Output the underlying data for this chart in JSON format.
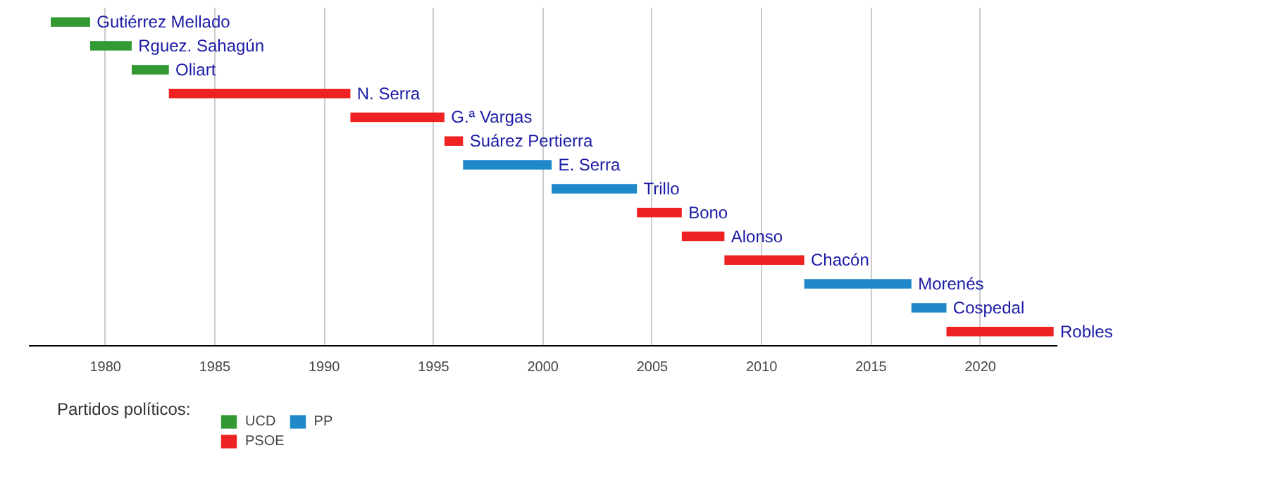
{
  "chart_data": {
    "type": "bar",
    "orientation": "horizontal",
    "tick_labels": "x",
    "grid": "x",
    "legend": "bottom",
    "legend_title": "Partidos políticos:",
    "categories": [
      "Gutiérrez Mellado",
      "Rguez. Sahagún",
      "Oliart",
      "N. Serra",
      "G.ª Vargas",
      "Suárez Pertierra",
      "E. Serra",
      "Trillo",
      "Bono",
      "Alonso",
      "Chacón",
      "Morenés",
      "Cospedal",
      "Robles"
    ],
    "series": [
      {
        "name": "UCD",
        "color": "#339933",
        "base": [
          1977.5,
          1979.3,
          1981.2,
          null,
          null,
          null,
          null,
          null,
          null,
          null,
          null,
          null,
          null,
          null
        ],
        "values": [
          1.8,
          1.9,
          1.7,
          null,
          null,
          null,
          null,
          null,
          null,
          null,
          null,
          null,
          null,
          null
        ]
      },
      {
        "name": "PSOE",
        "color": "#ee2222",
        "base": [
          null,
          null,
          null,
          1982.9,
          1991.2,
          1995.5,
          null,
          null,
          2004.3,
          2006.35,
          2008.3,
          null,
          null,
          2018.45
        ],
        "values": [
          null,
          null,
          null,
          8.3,
          4.3,
          0.85,
          null,
          null,
          2.05,
          1.95,
          3.65,
          null,
          null,
          4.9
        ]
      },
      {
        "name": "PP",
        "color": "#1e88c8",
        "base": [
          null,
          null,
          null,
          null,
          null,
          null,
          1996.35,
          2000.4,
          null,
          null,
          null,
          2011.95,
          2016.85,
          null
        ],
        "values": [
          null,
          null,
          null,
          null,
          null,
          null,
          4.05,
          3.9,
          null,
          null,
          null,
          4.9,
          1.6,
          null
        ]
      }
    ],
    "xlim": [
      1976.5,
      2023.5
    ],
    "xticks": [
      1980,
      1985,
      1990,
      1995,
      2000,
      2005,
      2010,
      2015,
      2020
    ]
  }
}
